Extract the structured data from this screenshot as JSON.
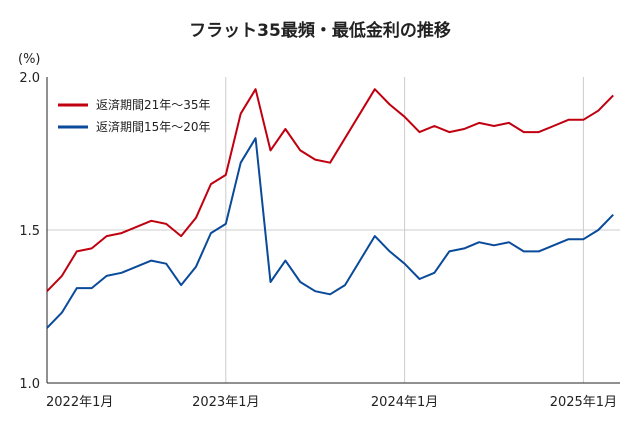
{
  "chart_data": {
    "type": "line",
    "title": "フラット35最頻・最低金利の推移",
    "ylabel": "(%)",
    "xlabel": "",
    "ylim": [
      1.0,
      2.0
    ],
    "yticks": [
      "1.0",
      "1.5",
      "2.0"
    ],
    "x_tick_labels": [
      {
        "label": "2022年1月",
        "index": 0
      },
      {
        "label": "2023年1月",
        "index": 12
      },
      {
        "label": "2024年1月",
        "index": 24
      },
      {
        "label": "2025年1月",
        "index": 36
      }
    ],
    "x": [
      "2022-01",
      "2022-02",
      "2022-03",
      "2022-04",
      "2022-05",
      "2022-06",
      "2022-07",
      "2022-08",
      "2022-09",
      "2022-10",
      "2022-11",
      "2022-12",
      "2023-01",
      "2023-02",
      "2023-03",
      "2023-04",
      "2023-05",
      "2023-06",
      "2023-07",
      "2023-08",
      "2023-09",
      "2023-10",
      "2023-11",
      "2023-12",
      "2024-01",
      "2024-02",
      "2024-03",
      "2024-04",
      "2024-05",
      "2024-06",
      "2024-07",
      "2024-08",
      "2024-09",
      "2024-10",
      "2024-11",
      "2024-12",
      "2025-01",
      "2025-02",
      "2025-03"
    ],
    "series": [
      {
        "name": "返済期間21年〜35年",
        "color": "#c0000f",
        "values": [
          1.3,
          1.35,
          1.43,
          1.44,
          1.48,
          1.49,
          1.51,
          1.53,
          1.52,
          1.48,
          1.54,
          1.65,
          1.68,
          1.88,
          1.96,
          1.76,
          1.83,
          1.76,
          1.73,
          1.72,
          1.8,
          1.88,
          1.96,
          1.91,
          1.87,
          1.82,
          1.84,
          1.82,
          1.83,
          1.85,
          1.84,
          1.85,
          1.82,
          1.82,
          1.84,
          1.86,
          1.86,
          1.89,
          1.94
        ]
      },
      {
        "name": "返済期間15年〜20年",
        "color": "#0a4a9a",
        "values": [
          1.18,
          1.23,
          1.31,
          1.31,
          1.35,
          1.36,
          1.38,
          1.4,
          1.39,
          1.32,
          1.38,
          1.49,
          1.52,
          1.72,
          1.8,
          1.33,
          1.4,
          1.33,
          1.3,
          1.29,
          1.32,
          1.4,
          1.48,
          1.43,
          1.39,
          1.34,
          1.36,
          1.43,
          1.44,
          1.46,
          1.45,
          1.46,
          1.43,
          1.43,
          1.45,
          1.47,
          1.47,
          1.5,
          1.55
        ]
      }
    ],
    "legend": "top-left",
    "grid": true,
    "axis_color": "#222222",
    "grid_color": "#cccccc"
  }
}
